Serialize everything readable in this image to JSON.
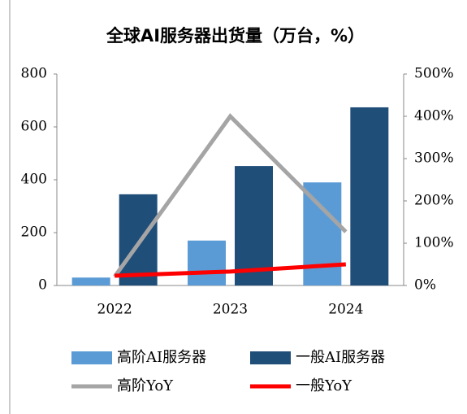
{
  "chart_data": {
    "type": "bar-line",
    "title": "全球AI服务器出货量（万台，%）",
    "categories": [
      "2022",
      "2023",
      "2024"
    ],
    "series": [
      {
        "name": "高阶AI服务器",
        "type": "bar",
        "color": "#5b9bd5",
        "values": [
          30,
          170,
          390
        ]
      },
      {
        "name": "一般AI服务器",
        "type": "bar",
        "color": "#1f4e79",
        "values": [
          345,
          452,
          674
        ]
      },
      {
        "name": "高阶YoY",
        "type": "line",
        "axis": "y2",
        "color": "#a5a5a5",
        "values": [
          21,
          400,
          127
        ]
      },
      {
        "name": "一般YoY",
        "type": "line",
        "axis": "y2",
        "color": "#ff0000",
        "values": [
          23,
          33,
          50
        ]
      }
    ],
    "ylim": [
      0,
      800
    ],
    "yticks": [
      0,
      200,
      400,
      600,
      800
    ],
    "y2lim": [
      0,
      500
    ],
    "y2ticks": [
      {
        "value": 0,
        "label": "0%"
      },
      {
        "value": 100,
        "label": "100%"
      },
      {
        "value": 200,
        "label": "200%"
      },
      {
        "value": 300,
        "label": "300%"
      },
      {
        "value": 400,
        "label": "400%"
      },
      {
        "value": 500,
        "label": "500%"
      }
    ],
    "legend": "bottom"
  }
}
